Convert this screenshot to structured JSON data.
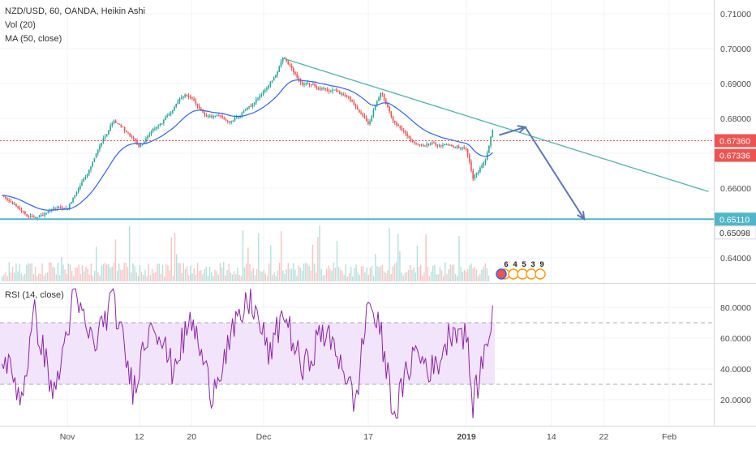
{
  "header": {
    "symbol_line": "NZD/USD, 60, OANDA, Heikin Ashi",
    "volume_line": "Vol (20)",
    "ma_line": "MA (50, close)",
    "rsi_line": "RSI (14, close)"
  },
  "colors": {
    "bull": "#26a69a",
    "bear": "#ef5350",
    "ma": "#2962ff",
    "trendline": "#4db6ac",
    "support": "#4fb5c9",
    "arrow": "#5c77b8",
    "rsi": "#8e24aa",
    "rsi_band": "#f1e4fb",
    "price_badge": "#ef5350",
    "support_badge": "#4fb5c9"
  },
  "chart_data": [
    {
      "type": "candlestick",
      "title": "NZD/USD, 60, OANDA, Heikin Ashi",
      "ylim": [
        0.6345,
        0.7125
      ],
      "y_ticks": [
        "0.71000",
        "0.70000",
        "0.69000",
        "0.68000",
        "0.66000",
        "0.64000"
      ],
      "x_ticks": [
        "Nov",
        "12",
        "20",
        "Dec",
        "17",
        "2019",
        "14",
        "22",
        "Feb"
      ],
      "price_series_approx": [
        {
          "date": "Oct 22",
          "close": 0.6575
        },
        {
          "date": "Oct 26",
          "close": 0.652
        },
        {
          "date": "Nov 1",
          "close": 0.654
        },
        {
          "date": "Nov 5",
          "close": 0.668
        },
        {
          "date": "Nov 8",
          "close": 0.6795
        },
        {
          "date": "Nov 12",
          "close": 0.672
        },
        {
          "date": "Nov 16",
          "close": 0.6795
        },
        {
          "date": "Nov 19",
          "close": 0.687
        },
        {
          "date": "Nov 22",
          "close": 0.6815
        },
        {
          "date": "Nov 26",
          "close": 0.679
        },
        {
          "date": "Nov 29",
          "close": 0.683
        },
        {
          "date": "Dec 3",
          "close": 0.6925
        },
        {
          "date": "Dec 4",
          "close": 0.697
        },
        {
          "date": "Dec 7",
          "close": 0.6895
        },
        {
          "date": "Dec 12",
          "close": 0.688
        },
        {
          "date": "Dec 14",
          "close": 0.6855
        },
        {
          "date": "Dec 17",
          "close": 0.6795
        },
        {
          "date": "Dec 19",
          "close": 0.6875
        },
        {
          "date": "Dec 21",
          "close": 0.6795
        },
        {
          "date": "Dec 24",
          "close": 0.6735
        },
        {
          "date": "Dec 28",
          "close": 0.6725
        },
        {
          "date": "Jan 1",
          "close": 0.6715
        },
        {
          "date": "Jan 2",
          "close": 0.663
        },
        {
          "date": "Jan 4",
          "close": 0.668
        },
        {
          "date": "Jan 5",
          "close": 0.6765
        }
      ],
      "moving_average": {
        "name": "MA (50, close)"
      },
      "price_labels": [
        {
          "value": "0.67360",
          "kind": "last-price"
        },
        {
          "value": "0.67336",
          "kind": "ma"
        },
        {
          "value": "0.65110",
          "kind": "support"
        },
        {
          "value": "0.65098",
          "kind": "support-secondary"
        }
      ],
      "drawings": {
        "trendline": {
          "from": {
            "date": "Dec 4",
            "value": 0.6972
          },
          "to": {
            "date": "Feb 7",
            "value": 0.659
          }
        },
        "support_line": {
          "value": 0.6511
        },
        "projection_arrow": [
          {
            "date": "Jan 6",
            "value": 0.6752
          },
          {
            "date": "Jan 10",
            "value": 0.6775
          },
          {
            "date": "Jan 19",
            "value": 0.6511
          }
        ]
      },
      "event_markers": [
        "6",
        "4",
        "5",
        "3",
        "9"
      ]
    },
    {
      "type": "bar",
      "title": "Vol (20)"
    },
    {
      "type": "line",
      "title": "RSI (14, close)",
      "ylim": [
        7,
        97
      ],
      "y_ticks": [
        "80.0000",
        "60.0000",
        "40.0000",
        "20.0000"
      ],
      "bands": {
        "upper": 70,
        "lower": 30
      },
      "rsi_series_approx": [
        {
          "date": "Oct 22",
          "value": 50
        },
        {
          "date": "Oct 25",
          "value": 22
        },
        {
          "date": "Oct 27",
          "value": 75
        },
        {
          "date": "Oct 30",
          "value": 22
        },
        {
          "date": "Nov 2",
          "value": 88
        },
        {
          "date": "Nov 5",
          "value": 55
        },
        {
          "date": "Nov 8",
          "value": 86
        },
        {
          "date": "Nov 11",
          "value": 27
        },
        {
          "date": "Nov 14",
          "value": 75
        },
        {
          "date": "Nov 17",
          "value": 40
        },
        {
          "date": "Nov 20",
          "value": 72
        },
        {
          "date": "Nov 23",
          "value": 25
        },
        {
          "date": "Nov 26",
          "value": 60
        },
        {
          "date": "Nov 29",
          "value": 86
        },
        {
          "date": "Dec 2",
          "value": 48
        },
        {
          "date": "Dec 4",
          "value": 78
        },
        {
          "date": "Dec 7",
          "value": 38
        },
        {
          "date": "Dec 10",
          "value": 65
        },
        {
          "date": "Dec 13",
          "value": 45
        },
        {
          "date": "Dec 15",
          "value": 15
        },
        {
          "date": "Dec 17",
          "value": 86
        },
        {
          "date": "Dec 19",
          "value": 60
        },
        {
          "date": "Dec 21",
          "value": 10
        },
        {
          "date": "Dec 24",
          "value": 52
        },
        {
          "date": "Dec 27",
          "value": 38
        },
        {
          "date": "Dec 30",
          "value": 68
        },
        {
          "date": "Jan 1",
          "value": 62
        },
        {
          "date": "Jan 2",
          "value": 16
        },
        {
          "date": "Jan 4",
          "value": 55
        },
        {
          "date": "Jan 5",
          "value": 77
        }
      ]
    }
  ]
}
